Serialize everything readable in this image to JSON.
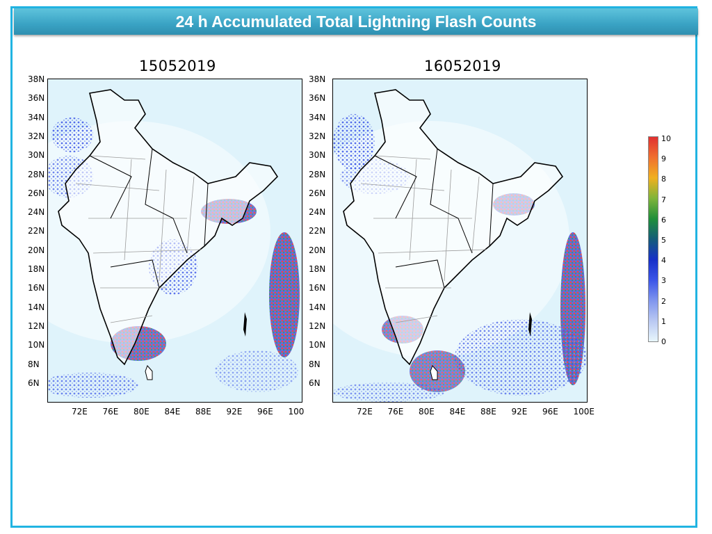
{
  "banner": {
    "title": "24 h Accumulated Total Lightning Flash Counts"
  },
  "panels": [
    {
      "date": "15052019"
    },
    {
      "date": "16052019"
    }
  ],
  "lat_labels": [
    "38N",
    "36N",
    "34N",
    "32N",
    "30N",
    "28N",
    "26N",
    "24N",
    "22N",
    "20N",
    "18N",
    "16N",
    "14N",
    "12N",
    "10N",
    "8N",
    "6N"
  ],
  "lon_labels_left": [
    "72E",
    "76E",
    "80E",
    "84E",
    "88E",
    "92E",
    "96E",
    "100"
  ],
  "lon_labels_right": [
    "72E",
    "76E",
    "80E",
    "84E",
    "88E",
    "92E",
    "96E",
    "100E"
  ],
  "colorbar": {
    "labels": [
      "10",
      "9",
      "8",
      "7",
      "6",
      "5",
      "4",
      "3",
      "2",
      "1",
      "0"
    ],
    "colors": [
      "#e8f6fc",
      "#b9c8f2",
      "#7f95ee",
      "#3b55e8",
      "#1730c8",
      "#145c7a",
      "#1f8f3a",
      "#7fb43a",
      "#f0b020",
      "#f07030",
      "#e03030"
    ]
  },
  "map_style": {
    "ocean": "#dff3fb",
    "land": "#ffffff",
    "border": "#000000",
    "district": "#9a9a9a"
  }
}
